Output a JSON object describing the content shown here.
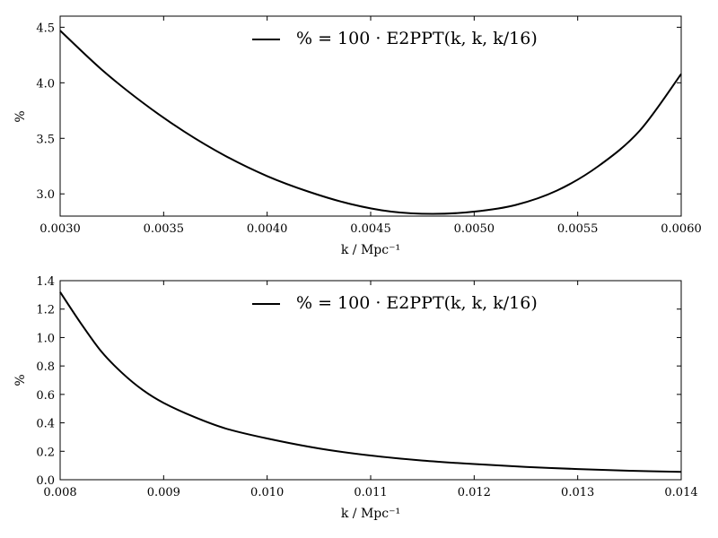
{
  "chart_data": [
    {
      "type": "line",
      "xlabel": "k / Mpc⁻¹",
      "ylabel": "%",
      "xlim": [
        0.003,
        0.006
      ],
      "ylim": [
        2.8,
        4.6
      ],
      "xticks": [
        0.003,
        0.0035,
        0.004,
        0.0045,
        0.005,
        0.0055,
        0.006
      ],
      "xtick_labels": [
        "0.0030",
        "0.0035",
        "0.0040",
        "0.0045",
        "0.0050",
        "0.0055",
        "0.0060"
      ],
      "yticks": [
        3.0,
        3.5,
        4.0,
        4.5
      ],
      "ytick_labels": [
        "3.0",
        "3.5",
        "4.0",
        "4.5"
      ],
      "grid": false,
      "legend_position": "top-center",
      "series": [
        {
          "name": "% = 100 · E2PPT(k, k, k/16)",
          "color": "#000000",
          "x": [
            0.003,
            0.0032,
            0.0034,
            0.0036,
            0.0038,
            0.004,
            0.0042,
            0.0044,
            0.0046,
            0.0048,
            0.005,
            0.0052,
            0.0054,
            0.0056,
            0.0058,
            0.006
          ],
          "y": [
            4.47,
            4.12,
            3.82,
            3.56,
            3.34,
            3.16,
            3.02,
            2.91,
            2.84,
            2.82,
            2.84,
            2.9,
            3.03,
            3.25,
            3.57,
            4.08
          ]
        }
      ]
    },
    {
      "type": "line",
      "xlabel": "k / Mpc⁻¹",
      "ylabel": "%",
      "xlim": [
        0.008,
        0.014
      ],
      "ylim": [
        0.0,
        1.4
      ],
      "xticks": [
        0.008,
        0.009,
        0.01,
        0.011,
        0.012,
        0.013,
        0.014
      ],
      "xtick_labels": [
        "0.008",
        "0.009",
        "0.010",
        "0.011",
        "0.012",
        "0.013",
        "0.014"
      ],
      "yticks": [
        0.0,
        0.2,
        0.4,
        0.6,
        0.8,
        1.0,
        1.2,
        1.4
      ],
      "ytick_labels": [
        "0.0",
        "0.2",
        "0.4",
        "0.6",
        "0.8",
        "1.0",
        "1.2",
        "1.4"
      ],
      "grid": false,
      "legend_position": "top-center",
      "series": [
        {
          "name": "% = 100 · E2PPT(k, k, k/16)",
          "color": "#000000",
          "x": [
            0.008,
            0.0082,
            0.0084,
            0.0086,
            0.0088,
            0.009,
            0.0093,
            0.0096,
            0.01,
            0.0105,
            0.011,
            0.0115,
            0.012,
            0.0125,
            0.013,
            0.0135,
            0.014
          ],
          "y": [
            1.32,
            1.1,
            0.9,
            0.75,
            0.63,
            0.54,
            0.44,
            0.36,
            0.29,
            0.22,
            0.17,
            0.135,
            0.11,
            0.09,
            0.075,
            0.063,
            0.055
          ]
        }
      ]
    }
  ]
}
